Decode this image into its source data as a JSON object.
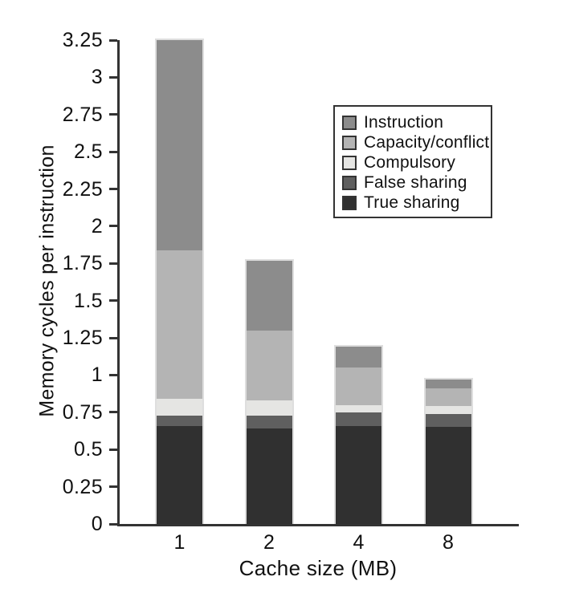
{
  "figure": {
    "ylabel": "Memory cycles per instruction",
    "xlabel": "Cache size (MB)"
  },
  "legend": {
    "items": [
      {
        "label": "Instruction",
        "color": "#8c8c8c"
      },
      {
        "label": "Capacity/conflict",
        "color": "#b4b4b4"
      },
      {
        "label": "Compulsory",
        "color": "#e5e5e3"
      },
      {
        "label": "False sharing",
        "color": "#5f5f5f"
      },
      {
        "label": "True sharing",
        "color": "#303030"
      }
    ]
  },
  "chart_data": {
    "type": "bar",
    "stacked": true,
    "title": "",
    "xlabel": "Cache size (MB)",
    "ylabel": "Memory cycles per instruction",
    "categories": [
      "1",
      "2",
      "4",
      "8"
    ],
    "series": [
      {
        "name": "True sharing",
        "slug": "true-sharing",
        "color": "#303030",
        "values": [
          0.66,
          0.64,
          0.66,
          0.65
        ]
      },
      {
        "name": "False sharing",
        "slug": "false-sharing",
        "color": "#5f5f5f",
        "values": [
          0.07,
          0.09,
          0.09,
          0.09
        ]
      },
      {
        "name": "Compulsory",
        "slug": "compulsory",
        "color": "#e5e5e3",
        "values": [
          0.11,
          0.1,
          0.05,
          0.05
        ]
      },
      {
        "name": "Capacity/conflict",
        "slug": "capacity-conflict",
        "color": "#b4b4b4",
        "values": [
          1.0,
          0.47,
          0.25,
          0.12
        ]
      },
      {
        "name": "Instruction",
        "slug": "instruction",
        "color": "#8c8c8c",
        "values": [
          1.41,
          0.47,
          0.14,
          0.06
        ]
      }
    ],
    "totals": [
      3.25,
      1.77,
      1.19,
      0.97
    ],
    "ylim": [
      0,
      3.25
    ],
    "ytick_step": 0.25,
    "yticks": [
      "0",
      "0.25",
      "0.5",
      "0.75",
      "1",
      "1.25",
      "1.5",
      "1.75",
      "2",
      "2.25",
      "2.5",
      "2.75",
      "3",
      "3.25"
    ],
    "grid": false,
    "legend_position": "upper right",
    "axis_color": "#333333"
  }
}
